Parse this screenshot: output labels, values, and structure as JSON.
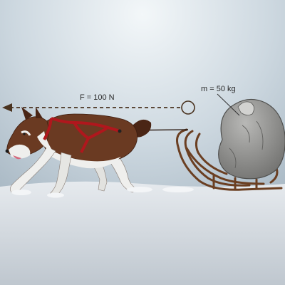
{
  "diagram": {
    "force_label": "F = 100 N",
    "mass_label": "m = 50 kg"
  },
  "colors": {
    "sky_top": "#b9c8d4",
    "sky_glow": "#eef3f6",
    "snow": "#d7dde3",
    "snow_shadow": "#c3cbd3",
    "force_arrow": "#4a3320",
    "dog_fur": "#6a3a22",
    "dog_fur_dark": "#4a2515",
    "dog_white": "#f1f1ef",
    "harness": "#b0171d",
    "sled_wood": "#7a4b2a",
    "boulder": "#9a9a98",
    "boulder_dark": "#6e6e6c"
  },
  "icons": {
    "dog": "husky-icon",
    "sled": "sled-icon",
    "load": "boulder-icon"
  }
}
